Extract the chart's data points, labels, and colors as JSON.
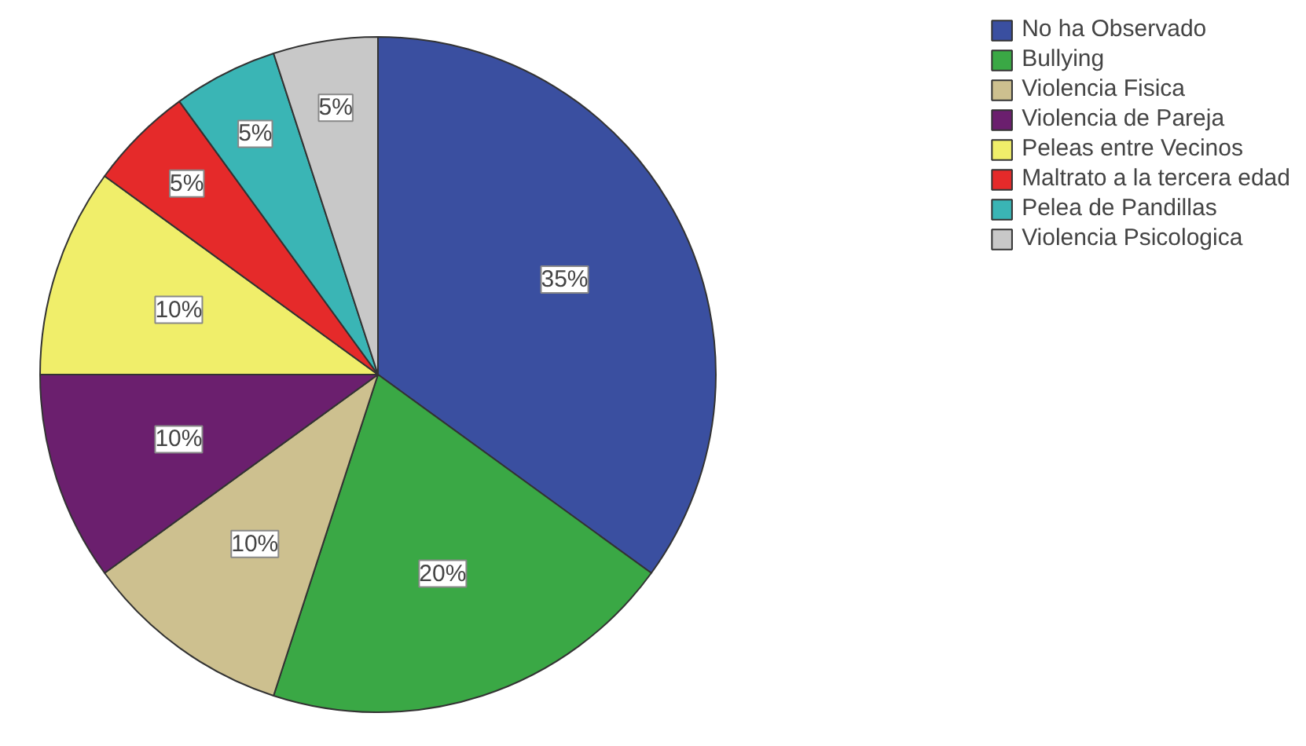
{
  "chart_data": {
    "type": "pie",
    "categories": [
      "No ha Observado",
      "Bullying",
      "Violencia Fisica",
      "Violencia de Pareja",
      "Peleas entre Vecinos",
      "Maltrato a la tercera edad",
      "Pelea de Pandillas",
      "Violencia Psicologica"
    ],
    "values": [
      35,
      20,
      10,
      10,
      10,
      5,
      5,
      5
    ],
    "colors": [
      "#3a4fa0",
      "#3aa845",
      "#cdc08f",
      "#6b1f6e",
      "#f0ee6a",
      "#e52a2a",
      "#3ab5b5",
      "#c8c8c8"
    ],
    "value_labels": [
      "35%",
      "20%",
      "10%",
      "10%",
      "10%",
      "5%",
      "5%",
      "5%"
    ],
    "legend": "top right"
  }
}
